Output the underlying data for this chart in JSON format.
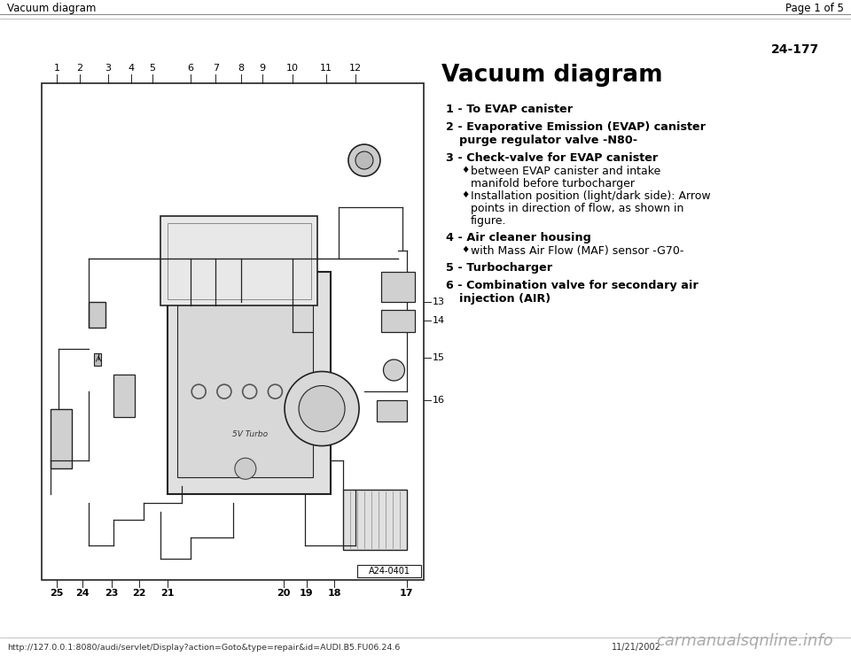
{
  "page_header_left": "Vacuum diagram",
  "page_header_right": "Page 1 of 5",
  "page_number": "24-177",
  "section_title": "Vacuum diagram",
  "items": [
    {
      "number": "1",
      "bold_text": "To EVAP canister",
      "continuation": "",
      "sub_items": []
    },
    {
      "number": "2",
      "bold_text": "Evaporative Emission (EVAP) canister",
      "continuation": "purge regulator valve -N80-",
      "sub_items": []
    },
    {
      "number": "3",
      "bold_text": "Check-valve for EVAP canister",
      "continuation": "",
      "sub_items": [
        [
          "between EVAP canister and intake",
          "manifold before turbocharger"
        ],
        [
          "Installation position (light/dark side): Arrow",
          "points in direction of flow, as shown in",
          "figure."
        ]
      ]
    },
    {
      "number": "4",
      "bold_text": "Air cleaner housing",
      "continuation": "",
      "sub_items": [
        [
          "with Mass Air Flow (MAF) sensor -G70-"
        ]
      ]
    },
    {
      "number": "5",
      "bold_text": "Turbocharger",
      "continuation": "",
      "sub_items": []
    },
    {
      "number": "6",
      "bold_text": "Combination valve for secondary air",
      "continuation": "injection (AIR)",
      "sub_items": []
    }
  ],
  "diagram_label": "A24-0401",
  "top_numbers": [
    "1",
    "2",
    "3",
    "4",
    "5",
    "6",
    "7",
    "8",
    "9",
    "10",
    "11",
    "12"
  ],
  "bottom_numbers_left": [
    "25",
    "24",
    "23",
    "22",
    "21"
  ],
  "bottom_numbers_right": [
    "20",
    "19",
    "18",
    "17"
  ],
  "right_numbers": [
    "13",
    "14",
    "15",
    "16"
  ],
  "footer_url": "http://127.0.0.1:8080/audi/servlet/Display?action=Goto&type=repair&id=AUDI.B5.FU06.24.6",
  "footer_date": "11/21/2002",
  "footer_brand": "carmanualsqnline.info",
  "bg_color": "#ffffff",
  "text_color": "#000000",
  "line_color": "#222222",
  "diagram_bg": "#ffffff"
}
